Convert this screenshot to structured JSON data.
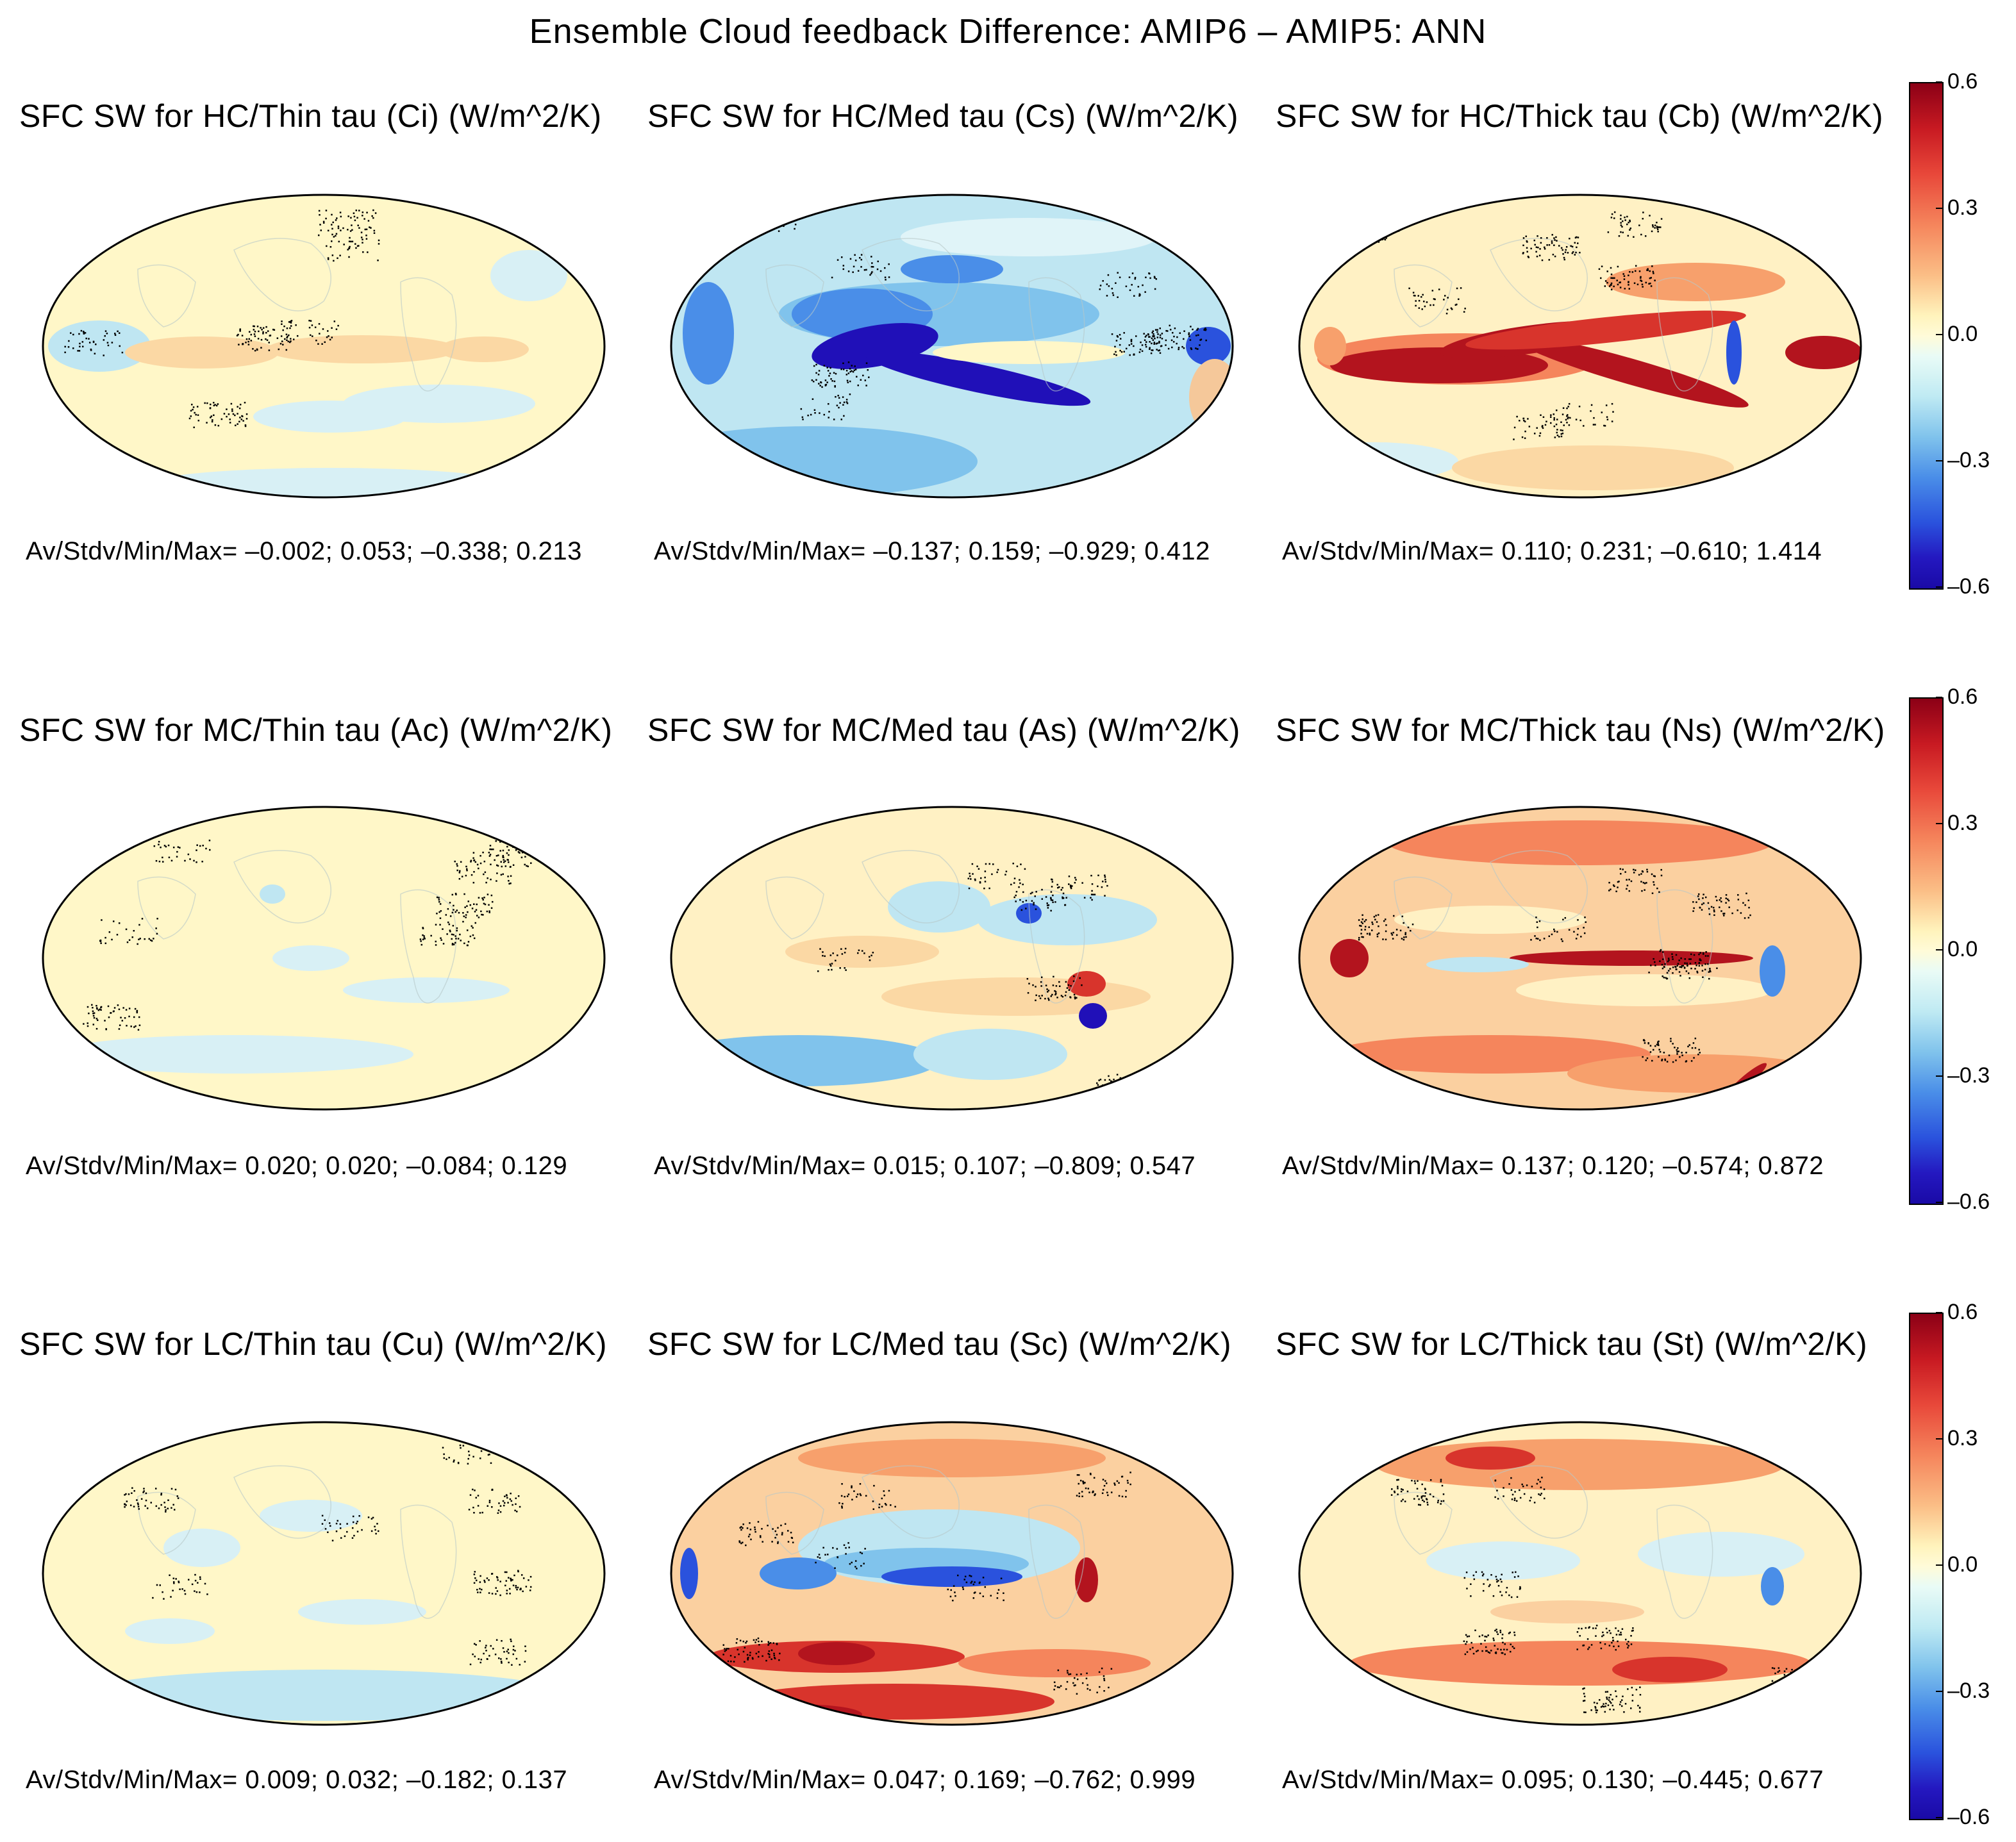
{
  "title": "Ensemble Cloud feedback Difference: AMIP6 – AMIP5: ANN",
  "colors": {
    "dark_red": "#8b0016",
    "red": "#d8342c",
    "orange": "#f7a06c",
    "neutral": "#fff7c8",
    "light_blue": "#bfe6f2",
    "blue": "#4a8ee8",
    "dark_blue": "#2010b8"
  },
  "chart_data": [
    {
      "type": "heatmap",
      "title": "SFC SW for HC/Thin tau (Ci) (W/m^2/K)",
      "stats": "Av/Stdv/Min/Max=  –0.002;   0.053;  –0.338;   0.213",
      "av": -0.002,
      "stdv": 0.053,
      "min": -0.338,
      "max": 0.213
    },
    {
      "type": "heatmap",
      "title": "SFC SW for HC/Med tau (Cs) (W/m^2/K)",
      "stats": "Av/Stdv/Min/Max=  –0.137;   0.159;  –0.929;   0.412",
      "av": -0.137,
      "stdv": 0.159,
      "min": -0.929,
      "max": 0.412
    },
    {
      "type": "heatmap",
      "title": "SFC SW for HC/Thick tau (Cb) (W/m^2/K)",
      "stats": "Av/Stdv/Min/Max=   0.110;   0.231;  –0.610;   1.414",
      "av": 0.11,
      "stdv": 0.231,
      "min": -0.61,
      "max": 1.414
    },
    {
      "type": "heatmap",
      "title": "SFC SW for MC/Thin tau (Ac) (W/m^2/K)",
      "stats": "Av/Stdv/Min/Max=   0.020;   0.020;  –0.084;   0.129",
      "av": 0.02,
      "stdv": 0.02,
      "min": -0.084,
      "max": 0.129
    },
    {
      "type": "heatmap",
      "title": "SFC SW for MC/Med tau (As) (W/m^2/K)",
      "stats": "Av/Stdv/Min/Max=   0.015;   0.107;  –0.809;   0.547",
      "av": 0.015,
      "stdv": 0.107,
      "min": -0.809,
      "max": 0.547
    },
    {
      "type": "heatmap",
      "title": "SFC SW for MC/Thick tau (Ns) (W/m^2/K)",
      "stats": "Av/Stdv/Min/Max=   0.137;   0.120;  –0.574;   0.872",
      "av": 0.137,
      "stdv": 0.12,
      "min": -0.574,
      "max": 0.872
    },
    {
      "type": "heatmap",
      "title": "SFC SW for LC/Thin tau (Cu) (W/m^2/K)",
      "stats": "Av/Stdv/Min/Max=   0.009;   0.032;  –0.182;   0.137",
      "av": 0.009,
      "stdv": 0.032,
      "min": -0.182,
      "max": 0.137
    },
    {
      "type": "heatmap",
      "title": "SFC SW for LC/Med tau (Sc) (W/m^2/K)",
      "stats": "Av/Stdv/Min/Max=   0.047;   0.169;  –0.762;   0.999",
      "av": 0.047,
      "stdv": 0.169,
      "min": -0.762,
      "max": 0.999
    },
    {
      "type": "heatmap",
      "title": "SFC SW for LC/Thick tau (St) (W/m^2/K)",
      "stats": "Av/Stdv/Min/Max=   0.095;   0.130;  –0.445;   0.677",
      "av": 0.095,
      "stdv": 0.13,
      "min": -0.445,
      "max": 0.677
    }
  ],
  "colorbar": {
    "range": [
      -0.6,
      0.6
    ],
    "ticks": [
      {
        "value": 0.6,
        "label": "0.6"
      },
      {
        "value": 0.3,
        "label": "0.3"
      },
      {
        "value": 0.0,
        "label": "0.0"
      },
      {
        "value": -0.3,
        "label": "–0.3"
      },
      {
        "value": -0.6,
        "label": "–0.6"
      }
    ]
  }
}
